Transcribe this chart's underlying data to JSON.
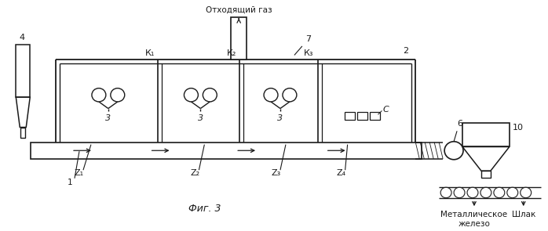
{
  "bg_color": "#ffffff",
  "line_color": "#1a1a1a",
  "title": "Фиг. 3",
  "label_offgas": "Отходящий газ",
  "label_metaliron": "Металлическое\nжелезо",
  "label_slag": "Шлак",
  "fig_width": 6.98,
  "fig_height": 2.95,
  "dpi": 100
}
